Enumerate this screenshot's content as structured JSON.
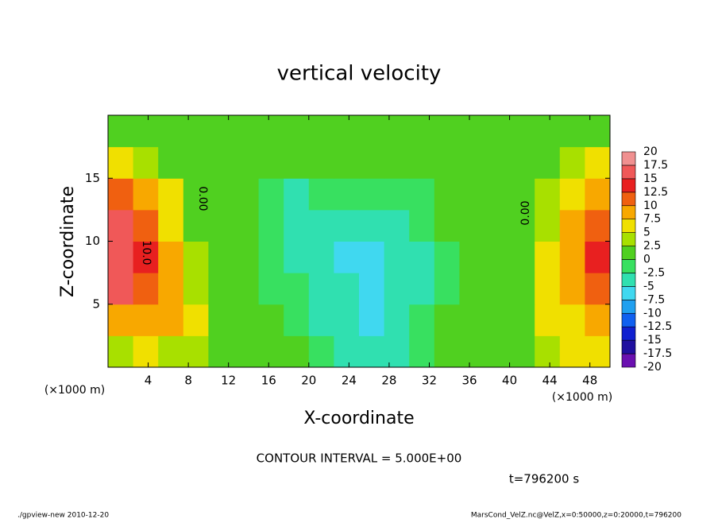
{
  "chart_data": {
    "type": "heatmap",
    "title": "vertical velocity",
    "x_label": "X-coordinate",
    "y_label": "Z-coordinate",
    "x_unit": "(×1000 m)",
    "y_unit": "(×1000 m)",
    "xlim": [
      0,
      50
    ],
    "ylim": [
      0,
      20
    ],
    "xticks": [
      4,
      8,
      12,
      16,
      20,
      24,
      28,
      32,
      36,
      40,
      44,
      48
    ],
    "yticks": [
      5,
      10,
      15
    ],
    "x": [
      1.25,
      3.75,
      6.25,
      8.75,
      11.25,
      13.75,
      16.25,
      18.75,
      21.25,
      23.75,
      26.25,
      28.75,
      31.25,
      33.75,
      36.25,
      38.75,
      41.25,
      43.75,
      46.25,
      48.75
    ],
    "z": [
      1.25,
      3.75,
      6.25,
      8.75,
      11.25,
      13.75,
      16.25,
      18.75
    ],
    "values": [
      [
        3,
        5,
        4,
        3,
        1,
        0,
        0,
        0,
        -2,
        -4,
        -5,
        -3,
        -1,
        0,
        0,
        1,
        2,
        3,
        5,
        6
      ],
      [
        8,
        9,
        8,
        5,
        1,
        0,
        0,
        -1,
        -3,
        -5,
        -6,
        -4,
        -2,
        0,
        0,
        1,
        2,
        5,
        7,
        8
      ],
      [
        15,
        12,
        9,
        4,
        0.5,
        0,
        -1,
        -2,
        -4,
        -5,
        -7,
        -5,
        -3,
        -1,
        0,
        0,
        2,
        6,
        9,
        11
      ],
      [
        17,
        13,
        8,
        3,
        0,
        0,
        -1,
        -3,
        -5,
        -6,
        -7,
        -5,
        -3,
        -1,
        0,
        0,
        2,
        5,
        9,
        13
      ],
      [
        16,
        12,
        7,
        2,
        0,
        0,
        -1,
        -4,
        -4,
        -5,
        -5,
        -4,
        -2,
        0,
        0,
        0,
        1,
        4,
        8,
        12
      ],
      [
        12,
        9,
        5,
        1,
        0,
        0,
        -1,
        -3,
        -2,
        -1,
        -2,
        -2,
        -1,
        0,
        0,
        0,
        1,
        3,
        6,
        9
      ],
      [
        5,
        4,
        2,
        0.5,
        0,
        0,
        0,
        0,
        0,
        0,
        0,
        0,
        0,
        0,
        0,
        0,
        0,
        1,
        3,
        5
      ],
      [
        1,
        1,
        0.5,
        0,
        0,
        0,
        0,
        0,
        0,
        0,
        0,
        0,
        0,
        0,
        0,
        0,
        0,
        0,
        0.5,
        1
      ]
    ],
    "colorbar_ticks": [
      -20,
      -17.5,
      -15,
      -12.5,
      -10,
      -7.5,
      -5,
      -2.5,
      0,
      2.5,
      5,
      7.5,
      10,
      12.5,
      15,
      17.5,
      20
    ],
    "colors": [
      "#6a10b0",
      "#2010a0",
      "#1020d0",
      "#1060f0",
      "#20a0f0",
      "#40d8f0",
      "#30e0b0",
      "#38e060",
      "#50d020",
      "#a8e000",
      "#f0e000",
      "#f8a800",
      "#f06010",
      "#e82020",
      "#f05858",
      "#f09090"
    ],
    "annotations": [
      "10.0",
      "0.00",
      "0.00"
    ],
    "contour_interval": "CONTOUR INTERVAL = 5.000E+00",
    "time": "t=796200 s",
    "footer_left": "./gpview-new  2010-12-20",
    "footer_right": "MarsCond_VelZ.nc@VelZ,x=0:50000,z=0:20000,t=796200"
  }
}
